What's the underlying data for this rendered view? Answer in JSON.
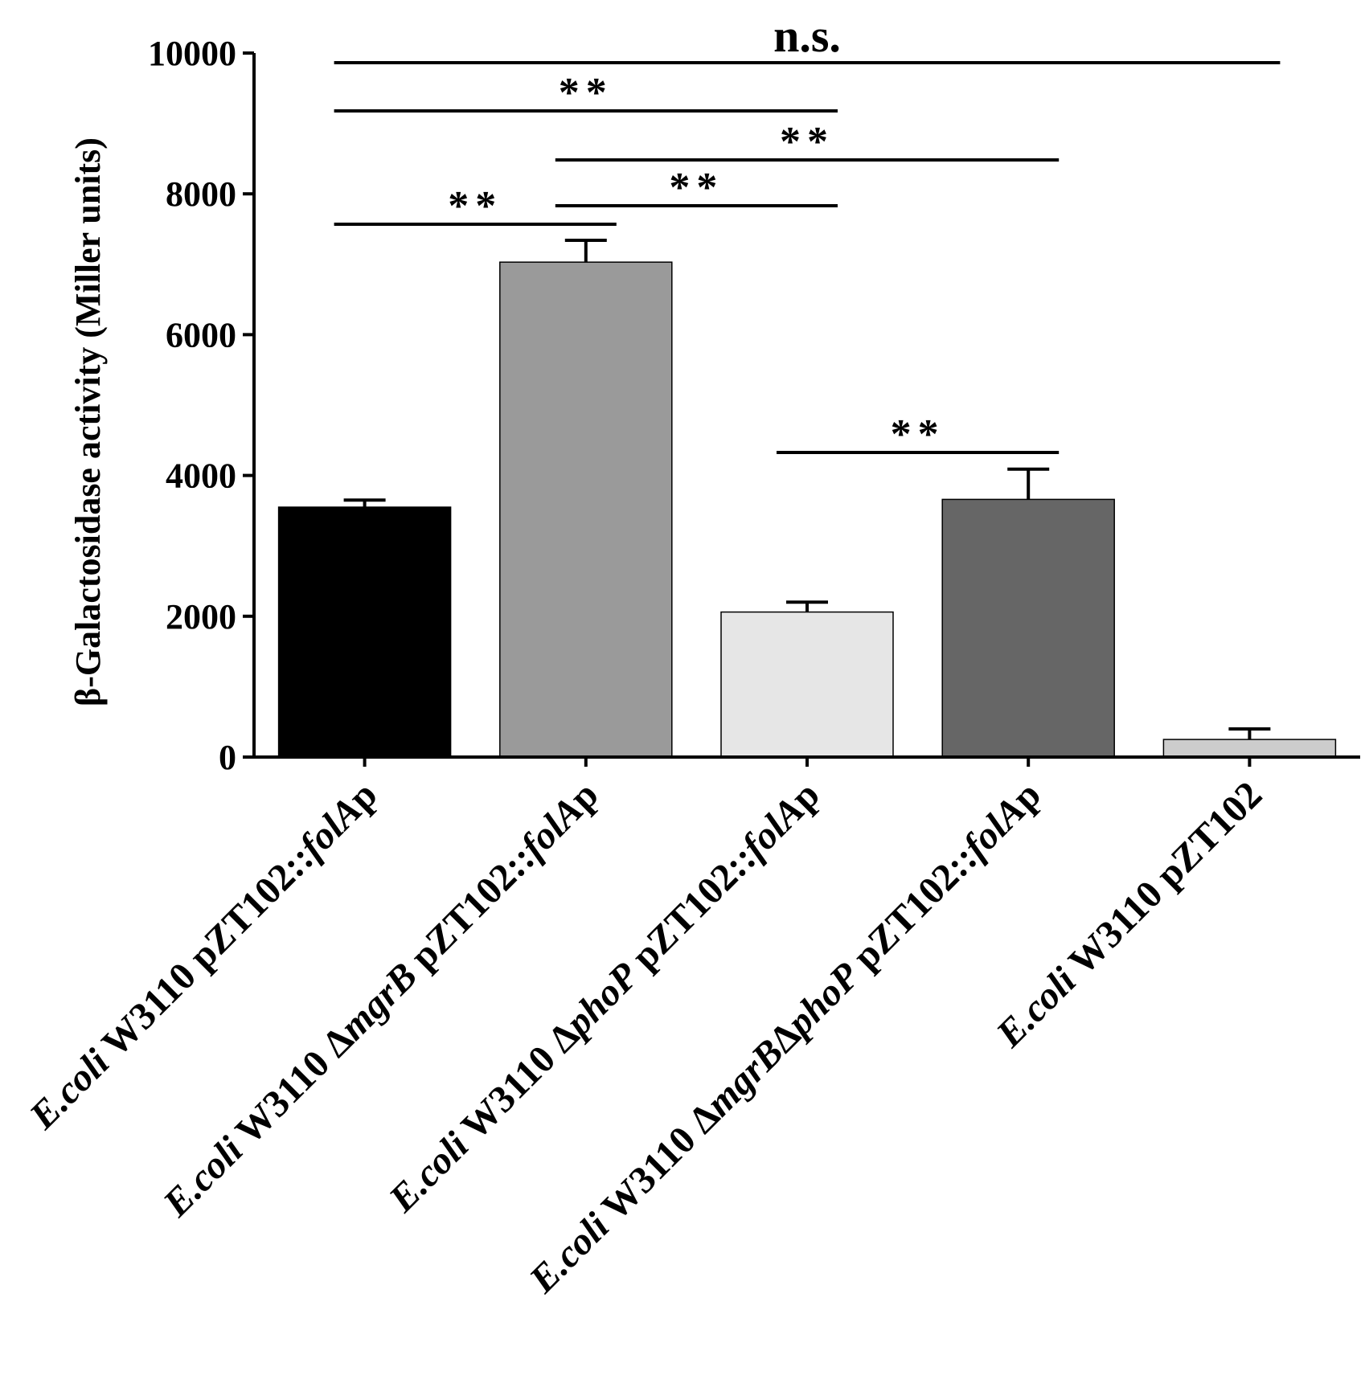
{
  "chart_data": {
    "type": "bar",
    "ylabel": "β-Galactosidase activity (Miller units)",
    "ylim": [
      0,
      10000
    ],
    "yticks": [
      0,
      2000,
      4000,
      6000,
      8000,
      10000
    ],
    "ytick_labels": [
      "0",
      "2000",
      "4000",
      "6000",
      "8000",
      "10000"
    ],
    "categories": [
      {
        "parts": [
          {
            "t": "E.coli",
            "i": true
          },
          {
            "t": " W3110 pZT102::",
            "i": false
          },
          {
            "t": "folA",
            "i": true
          },
          {
            "t": "p",
            "i": false
          }
        ]
      },
      {
        "parts": [
          {
            "t": "E.coli",
            "i": true
          },
          {
            "t": " W3110 Δ",
            "i": false
          },
          {
            "t": "mgrB",
            "i": true
          },
          {
            "t": " pZT102::",
            "i": false
          },
          {
            "t": "folA",
            "i": true
          },
          {
            "t": "p",
            "i": false
          }
        ]
      },
      {
        "parts": [
          {
            "t": "E.coli",
            "i": true
          },
          {
            "t": " W3110 Δ",
            "i": false
          },
          {
            "t": "phoP",
            "i": true
          },
          {
            "t": " pZT102::",
            "i": false
          },
          {
            "t": "folA",
            "i": true
          },
          {
            "t": "p",
            "i": false
          }
        ]
      },
      {
        "parts": [
          {
            "t": "E.coli",
            "i": true
          },
          {
            "t": " W3110 Δ",
            "i": false
          },
          {
            "t": "mgrB",
            "i": true
          },
          {
            "t": "Δ",
            "i": false
          },
          {
            "t": "phoP",
            "i": true
          },
          {
            "t": " pZT102::",
            "i": false
          },
          {
            "t": "folA",
            "i": true
          },
          {
            "t": "p",
            "i": false
          }
        ]
      },
      {
        "parts": [
          {
            "t": "E.coli",
            "i": true
          },
          {
            "t": " W3110 pZT102",
            "i": false
          }
        ]
      }
    ],
    "values": [
      3550,
      7030,
      2060,
      3660,
      250
    ],
    "errors": [
      100,
      310,
      140,
      430,
      150
    ],
    "colors": [
      "#000000",
      "#9a9a9a",
      "#e6e6e6",
      "#666666",
      "#cccccc"
    ],
    "significance": [
      {
        "from": 0,
        "to": 4,
        "label": "n.s."
      },
      {
        "from": 0,
        "to": 2,
        "label": "**"
      },
      {
        "from": 1,
        "to": 3,
        "label": "**"
      },
      {
        "from": 1,
        "to": 2,
        "label": "**"
      },
      {
        "from": 0,
        "to": 1,
        "label": "**"
      },
      {
        "from": 2,
        "to": 3,
        "label": "**"
      }
    ]
  }
}
